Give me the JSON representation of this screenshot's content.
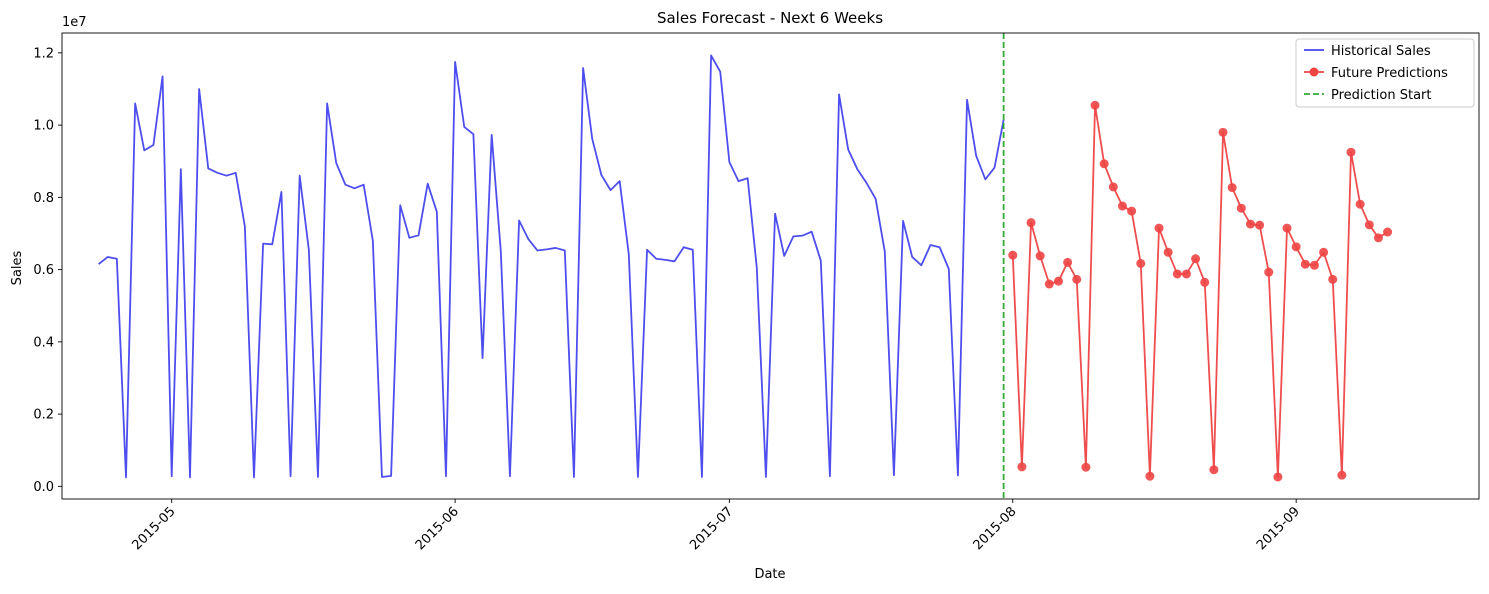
{
  "chart_data": {
    "type": "line",
    "title": "Sales Forecast - Next 6 Weeks",
    "xlabel": "Date",
    "ylabel": "Sales",
    "y_multiplier_label": "1e7",
    "y_multiplier": 10000000,
    "xlim": [
      "2015-04-19",
      "2015-09-21"
    ],
    "ylim": [
      -350000,
      12550000
    ],
    "y_ticks": [
      0,
      2000000,
      4000000,
      6000000,
      8000000,
      10000000,
      12000000
    ],
    "y_tick_labels": [
      "0.0",
      "0.2",
      "0.4",
      "0.6",
      "0.8",
      "1.0",
      "1.2"
    ],
    "x_ticks": [
      "2015-05-01",
      "2015-06-01",
      "2015-07-01",
      "2015-08-01",
      "2015-09-01"
    ],
    "x_tick_labels": [
      "2015-05",
      "2015-06",
      "2015-07",
      "2015-08",
      "2015-09"
    ],
    "grid": false,
    "legend_position": "top-right",
    "colors": {
      "historical": "#4444ee",
      "prediction": "#ee4444",
      "prediction_start": "#33aa33"
    },
    "series": [
      {
        "name": "Historical Sales",
        "start_date": "2015-04-23",
        "step_days": 1,
        "values": [
          6150000,
          6350000,
          6300000,
          250000,
          10600000,
          9300000,
          9450000,
          11350000,
          280000,
          8780000,
          250000,
          11000000,
          8800000,
          8680000,
          8600000,
          8680000,
          7200000,
          250000,
          6720000,
          6700000,
          8150000,
          280000,
          8600000,
          6550000,
          260000,
          10600000,
          8950000,
          8350000,
          8250000,
          8350000,
          6800000,
          260000,
          290000,
          7780000,
          6880000,
          6950000,
          8380000,
          7600000,
          280000,
          11750000,
          9950000,
          9750000,
          3550000,
          9730000,
          6500000,
          280000,
          7360000,
          6850000,
          6530000,
          6560000,
          6600000,
          6530000,
          260000,
          11580000,
          9620000,
          8620000,
          8200000,
          8450000,
          6420000,
          260000,
          6550000,
          6300000,
          6270000,
          6230000,
          6620000,
          6550000,
          260000,
          11930000,
          11480000,
          8980000,
          8450000,
          8530000,
          6050000,
          260000,
          7550000,
          6380000,
          6920000,
          6940000,
          7050000,
          6250000,
          280000,
          10850000,
          9320000,
          8780000,
          8400000,
          7960000,
          6500000,
          310000,
          7350000,
          6350000,
          6120000,
          6680000,
          6620000,
          6020000,
          300000,
          10700000,
          9150000,
          8500000,
          8820000,
          10150000
        ]
      },
      {
        "name": "Future Predictions",
        "start_date": "2015-08-01",
        "step_days": 1,
        "values": [
          6400000,
          540000,
          7300000,
          6380000,
          5600000,
          5680000,
          6200000,
          5730000,
          530000,
          10550000,
          8930000,
          8290000,
          7760000,
          7620000,
          6170000,
          280000,
          7150000,
          6480000,
          5880000,
          5880000,
          6300000,
          5650000,
          460000,
          9800000,
          8270000,
          7700000,
          7260000,
          7230000,
          5930000,
          260000,
          7150000,
          6630000,
          6150000,
          6120000,
          6480000,
          5730000,
          310000,
          9250000,
          7810000,
          7240000,
          6880000,
          7040000
        ]
      }
    ],
    "vertical_line": {
      "name": "Prediction Start",
      "date": "2015-07-31"
    }
  }
}
